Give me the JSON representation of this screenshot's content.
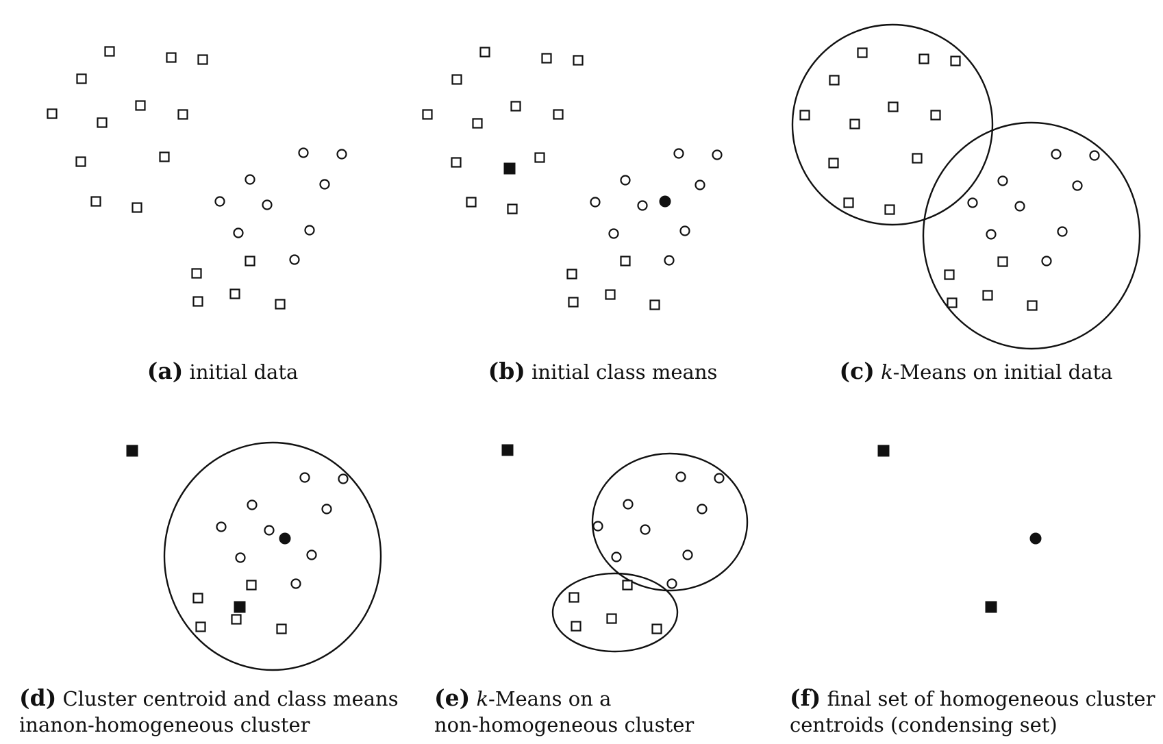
{
  "panels": [
    {
      "id": "a",
      "caption_tag": "(a)",
      "caption_line1_pre": " initial data",
      "caption_line1_italic": "",
      "caption_line1_post": "",
      "caption_line2": "",
      "squares": [
        [
          160,
          75
        ],
        [
          250,
          84
        ],
        [
          296,
          87
        ],
        [
          119,
          115
        ],
        [
          205,
          154
        ],
        [
          267,
          167
        ],
        [
          76,
          166
        ],
        [
          149,
          179
        ],
        [
          118,
          236
        ],
        [
          240,
          229
        ],
        [
          140,
          294
        ],
        [
          200,
          303
        ],
        [
          287,
          399
        ],
        [
          365,
          381
        ],
        [
          289,
          440
        ],
        [
          343,
          429
        ],
        [
          409,
          444
        ]
      ],
      "circles": [
        [
          443,
          223
        ],
        [
          499,
          225
        ],
        [
          365,
          262
        ],
        [
          474,
          269
        ],
        [
          321,
          294
        ],
        [
          390,
          299
        ],
        [
          348,
          340
        ],
        [
          452,
          336
        ],
        [
          430,
          379
        ]
      ],
      "filled_squares": [],
      "filled_circles": [],
      "ellipses": []
    },
    {
      "id": "b",
      "caption_tag": "(b)",
      "caption_line1_pre": " initial class means",
      "caption_line1_italic": "",
      "caption_line1_post": "",
      "caption_line2": "",
      "squares": [
        [
          708,
          76
        ],
        [
          798,
          85
        ],
        [
          844,
          88
        ],
        [
          667,
          116
        ],
        [
          753,
          155
        ],
        [
          815,
          167
        ],
        [
          624,
          167
        ],
        [
          697,
          180
        ],
        [
          666,
          237
        ],
        [
          788,
          230
        ],
        [
          688,
          295
        ],
        [
          748,
          305
        ],
        [
          835,
          400
        ],
        [
          913,
          381
        ],
        [
          837,
          441
        ],
        [
          891,
          430
        ],
        [
          956,
          445
        ]
      ],
      "circles": [
        [
          991,
          224
        ],
        [
          1047,
          226
        ],
        [
          913,
          263
        ],
        [
          1022,
          270
        ],
        [
          869,
          295
        ],
        [
          938,
          300
        ],
        [
          896,
          341
        ],
        [
          1000,
          337
        ],
        [
          977,
          380
        ]
      ],
      "filled_squares": [
        [
          744,
          246
        ]
      ],
      "filled_circles": [
        [
          971,
          294
        ]
      ],
      "ellipses": []
    },
    {
      "id": "c",
      "caption_tag": "(c)",
      "caption_line1_pre": " ",
      "caption_line1_italic": "k",
      "caption_line1_post": "-Means on initial data",
      "caption_line2": "",
      "squares": [
        [
          1259,
          77
        ],
        [
          1349,
          86
        ],
        [
          1395,
          89
        ],
        [
          1218,
          117
        ],
        [
          1304,
          156
        ],
        [
          1366,
          168
        ],
        [
          1175,
          168
        ],
        [
          1248,
          181
        ],
        [
          1217,
          238
        ],
        [
          1339,
          231
        ],
        [
          1239,
          296
        ],
        [
          1299,
          306
        ],
        [
          1386,
          401
        ],
        [
          1464,
          382
        ],
        [
          1390,
          442
        ],
        [
          1442,
          431
        ],
        [
          1507,
          446
        ]
      ],
      "circles": [
        [
          1542,
          225
        ],
        [
          1598,
          227
        ],
        [
          1464,
          264
        ],
        [
          1573,
          271
        ],
        [
          1420,
          296
        ],
        [
          1489,
          301
        ],
        [
          1447,
          342
        ],
        [
          1551,
          338
        ],
        [
          1528,
          381
        ]
      ],
      "filled_squares": [],
      "filled_circles": [],
      "ellipses": [
        [
          1303,
          182,
          146,
          146
        ],
        [
          1506,
          344,
          158,
          165
        ]
      ]
    },
    {
      "id": "d",
      "caption_tag": "(d)",
      "caption_line1_pre": " Cluster centroid and class means",
      "caption_line1_italic": "",
      "caption_line1_post": "",
      "caption_line2": "inanon-homogeneous cluster",
      "squares": [
        [
          289,
          873
        ],
        [
          367,
          854
        ],
        [
          293,
          915
        ],
        [
          345,
          904
        ],
        [
          411,
          918
        ]
      ],
      "circles": [
        [
          445,
          697
        ],
        [
          501,
          699
        ],
        [
          368,
          737
        ],
        [
          477,
          743
        ],
        [
          323,
          769
        ],
        [
          393,
          774
        ],
        [
          351,
          814
        ],
        [
          455,
          810
        ],
        [
          432,
          852
        ]
      ],
      "filled_squares": [
        [
          193,
          658
        ],
        [
          350,
          886
        ]
      ],
      "filled_circles": [
        [
          416,
          786
        ]
      ],
      "ellipses": [
        [
          398,
          812,
          158,
          166
        ]
      ]
    },
    {
      "id": "e",
      "caption_tag": "(e)",
      "caption_line1_pre": " ",
      "caption_line1_italic": "k",
      "caption_line1_post": "-Means on a",
      "caption_line2": "non-homogeneous cluster",
      "squares": [
        [
          838,
          872
        ],
        [
          916,
          854
        ],
        [
          841,
          914
        ],
        [
          893,
          903
        ],
        [
          959,
          918
        ]
      ],
      "circles": [
        [
          994,
          696
        ],
        [
          1050,
          698
        ],
        [
          917,
          736
        ],
        [
          1025,
          743
        ],
        [
          873,
          768
        ],
        [
          942,
          773
        ],
        [
          900,
          813
        ],
        [
          1004,
          810
        ],
        [
          981,
          852
        ]
      ],
      "filled_squares": [
        [
          741,
          657
        ]
      ],
      "filled_circles": [],
      "ellipses": [
        [
          978,
          762,
          113,
          100
        ],
        [
          898,
          894,
          91,
          57
        ]
      ]
    },
    {
      "id": "f",
      "caption_tag": "(f)",
      "caption_line1_pre": " final set of homogeneous cluster",
      "caption_line1_italic": "",
      "caption_line1_post": "",
      "caption_line2": "centroids (condensing set)",
      "squares": [],
      "circles": [],
      "filled_squares": [
        [
          1290,
          658
        ],
        [
          1447,
          886
        ]
      ],
      "filled_circles": [
        [
          1512,
          786
        ]
      ],
      "ellipses": []
    }
  ]
}
